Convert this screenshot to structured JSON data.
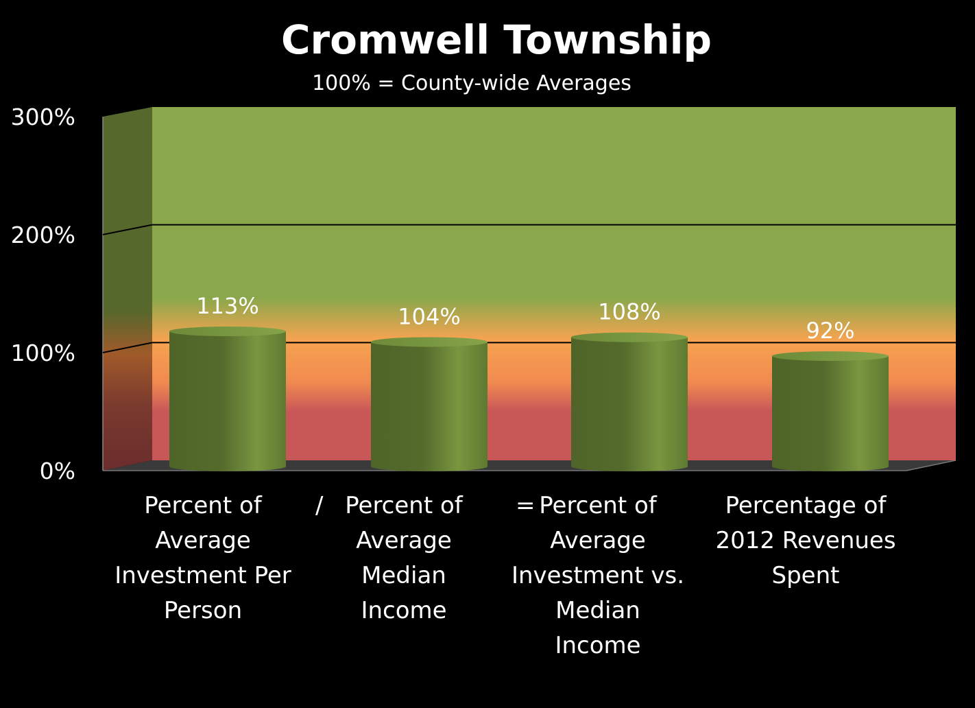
{
  "chart_data": {
    "type": "bar",
    "title": "Cromwell Township",
    "subtitle": "100% = County-wide Averages",
    "categories": [
      "Percent of\nAverage\nInvestment Per\nPerson",
      "Percent of\nAverage\nMedian\nIncome",
      "Percent of\nAverage\nInvestment vs.\nMedian\nIncome",
      "Percentage of\n2012 Revenues\nSpent"
    ],
    "values": [
      113,
      104,
      108,
      92
    ],
    "data_labels": [
      "113%",
      "104%",
      "108%",
      "92%"
    ],
    "ylim": [
      0,
      300
    ],
    "y_ticks": [
      "0%",
      "100%",
      "200%",
      "300%"
    ],
    "separators": [
      "/",
      "="
    ],
    "grid": true,
    "colors": {
      "bar": "#6a8a35",
      "wall_top": "#8aa84b",
      "wall_mid": "#f79a4b",
      "wall_bottom": "#c85858",
      "background": "#000000"
    }
  }
}
